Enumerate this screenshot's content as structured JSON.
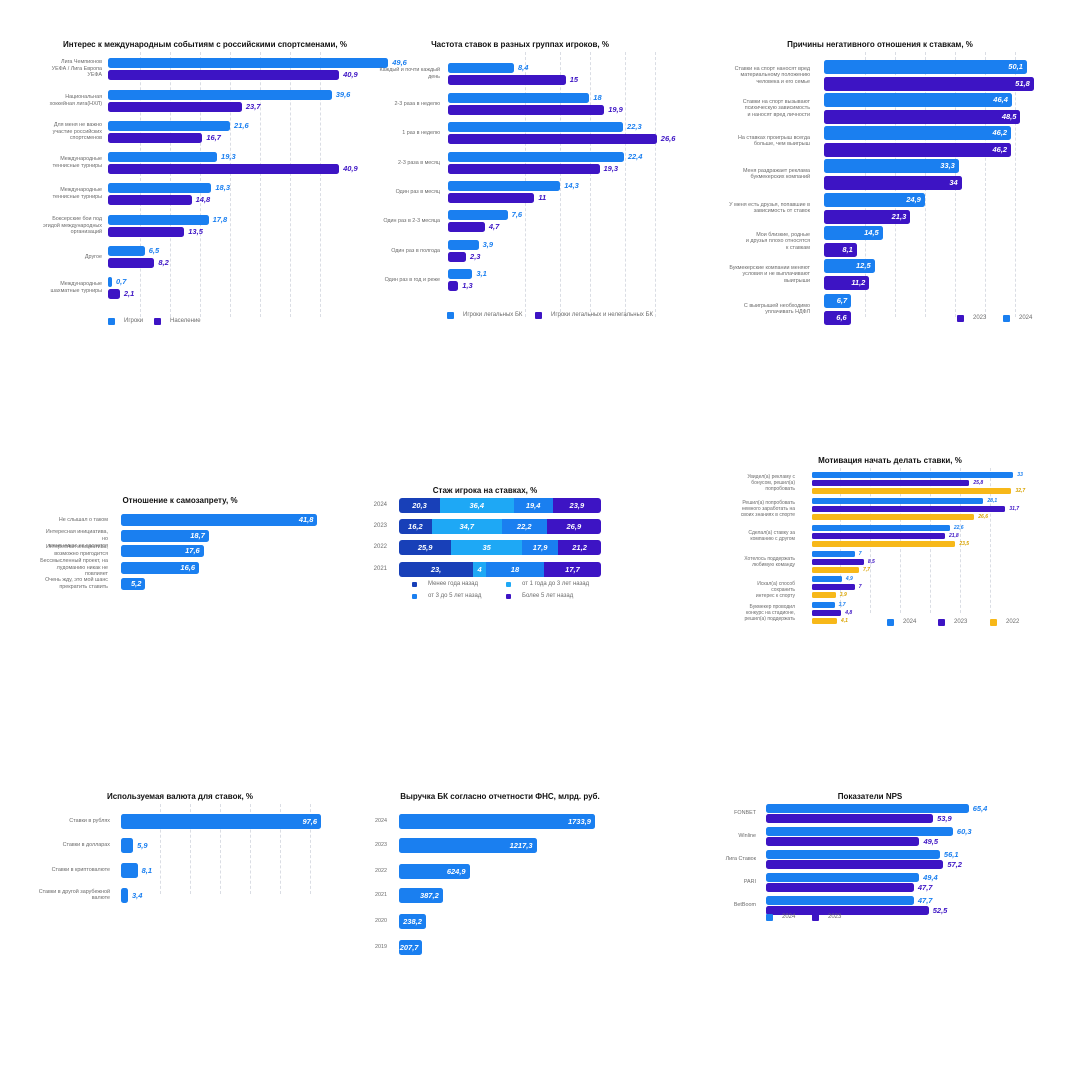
{
  "colors": {
    "blue": "#1a7ff0",
    "purple": "#3d14c4",
    "navy": "#1840b8",
    "lightblue": "#1ea8f5",
    "yellow": "#f7b819"
  },
  "chart_data": [
    {
      "id": "interest",
      "type": "bar",
      "orientation": "horizontal",
      "title": "Интерес к международным событиям с российскими спортсменами, %",
      "categories": [
        "Лига Чемпионов\nУЕФА / Лига Европа\nУЕФА",
        "Национальная\nхоккейная лига(НХЛ)",
        "Для меня не важно\nучастие российских\nспортсменов",
        "Международные\nтеннисные турниры",
        "Международные\nтеннисные турниры",
        "Боксерские бои под\nэгидой международных\nорганизаций",
        "Другое",
        "Международные\nшахматные турниры"
      ],
      "series": [
        {
          "name": "Игроки",
          "values": [
            "49,6",
            "39,6",
            "21,6",
            "19,3",
            "18,3",
            "17,8",
            "6,5",
            "0,7"
          ]
        },
        {
          "name": "Население",
          "values": [
            "40,9",
            "23,7",
            "16,7",
            "40,9",
            "14,8",
            "13,5",
            "8,2",
            "2,1"
          ]
        }
      ]
    },
    {
      "id": "frequency",
      "type": "bar",
      "orientation": "horizontal",
      "title": "Частота ставок в разных группах игроков, %",
      "categories": [
        "Каждый и почти каждый\nдень",
        "2-3 раза в неделю",
        "1 раз в неделю",
        "2-3 раза в месяц",
        "Один раз в месяц",
        "Один раз в 2-3 месяца",
        "Один раз в полгода",
        "Один раз в год и реже"
      ],
      "series": [
        {
          "name": "Игроки легальных БК",
          "values": [
            "8,4",
            "18",
            "22,3",
            "22,4",
            "14,3",
            "7,6",
            "3,9",
            "3,1"
          ]
        },
        {
          "name": "Игроки легальных и нелегальных БК",
          "values": [
            "15",
            "19,9",
            "26,6",
            "19,3",
            "11",
            "4,7",
            "2,3",
            "1,3"
          ]
        }
      ]
    },
    {
      "id": "negative",
      "type": "bar",
      "orientation": "horizontal",
      "title": "Причины негативного отношения к ставкам, %",
      "categories": [
        "Ставки на спорт наносят вред\nматериальному положению\nчеловека и его семье",
        "Ставки на спорт вызывают\nпсихическую зависимость\nи наносят вред личности",
        "На ставках проигрыш всегда\nбольше, чем выигрыш",
        "Меня раздражает реклама\nбукмекерских компаний",
        "У меня есть друзья, попавшие в\nзависимость от ставок",
        "Мои близкие, родные\nи друзья плохо относятся\nк ставкам",
        "Букмекерские компании меняют\nусловия и не выплачивают\nвыигрыши",
        "С выигрышей необходимо\nуплачивать НДФЛ"
      ],
      "legend_order": [
        "2023",
        "2024"
      ],
      "series": [
        {
          "name": "2024",
          "values": [
            "50,1",
            "46,4",
            "46,2",
            "33,3",
            "24,9",
            "14,5",
            "12,5",
            "6,7"
          ]
        },
        {
          "name": "2023",
          "values": [
            "51,8",
            "48,5",
            "46,2",
            "34",
            "21,3",
            "8,1",
            "11,2",
            "6,6"
          ]
        }
      ]
    },
    {
      "id": "selfban",
      "type": "bar",
      "orientation": "horizontal",
      "title": "Отношение к самозапрету, %",
      "categories": [
        "Не слышал о таком",
        "Интересная инициатива, но\nменя никак не касается",
        "Интересная инициатива,\nвозможно пригодится",
        "Бессмысленный проект, на\nлудоманию никак не\nповлияет",
        "Очень жду, это мой шанс\nпрекратить ставить"
      ],
      "series": [
        {
          "name": "",
          "values": [
            "41,8",
            "18,7",
            "17,6",
            "16,6",
            "5,2"
          ]
        }
      ]
    },
    {
      "id": "tenure",
      "type": "bar",
      "orientation": "horizontal-stacked",
      "title": "Стаж игрока на ставках, %",
      "categories": [
        "2024",
        "2023",
        "2022",
        "2021"
      ],
      "series": [
        {
          "name": "Менее года назад",
          "values": [
            "20,3",
            "16,2",
            "25,9",
            "23,"
          ]
        },
        {
          "name": "от 1 года до 3 лет назад",
          "values": [
            "36,4",
            "34,7",
            "35",
            "4"
          ]
        },
        {
          "name": "от 3 до 5 лет назад",
          "values": [
            "19,4",
            "22,2",
            "17,9",
            "18"
          ]
        },
        {
          "name": "Более 5 лет назад",
          "values": [
            "23,9",
            "26,9",
            "21,2",
            "17,7"
          ]
        }
      ]
    },
    {
      "id": "motivation",
      "type": "bar",
      "orientation": "horizontal",
      "title": "Мотивация начать делать ставки, %",
      "categories": [
        "Увидел(а) рекламу с\nбонусом, решил(а)\nпопробовать",
        "Решил(а) попробовать\nнемного заработать на\nсвоих знаниях в спорте",
        "Сделал(а) ставку за\nкомпанию с другом",
        "Хотелось поддержать\nлюбимую команду",
        "Искал(а) способ сохранить\nинтерес к спорту",
        "Букмекер проводил\nконкурс на стадионе,\nрешил(а) поддержать"
      ],
      "series": [
        {
          "name": "2024",
          "values": [
            "33",
            "28,1",
            "22,6",
            "7",
            "4,9",
            "3,7"
          ]
        },
        {
          "name": "2023",
          "values": [
            "25,8",
            "31,7",
            "21,8",
            "8,5",
            "7",
            "4,8"
          ]
        },
        {
          "name": "2022",
          "values": [
            "32,7",
            "26,6",
            "23,5",
            "7,7",
            "3,9",
            "4,1"
          ]
        }
      ]
    },
    {
      "id": "currency",
      "type": "bar",
      "orientation": "horizontal",
      "title": "Используемая валюта для ставок, %",
      "categories": [
        "Ставки в рублях",
        "Ставки в долларах",
        "Ставки в криптовалюте",
        "Ставки в другой зарубежной\nвалюте"
      ],
      "series": [
        {
          "name": "",
          "values": [
            "97,6",
            "5,9",
            "8,1",
            "3,4"
          ]
        }
      ]
    },
    {
      "id": "revenue",
      "type": "bar",
      "orientation": "horizontal",
      "title": "Выручка БК согласно отчетности ФНС, млрд. руб.",
      "categories": [
        "2024",
        "2023",
        "2022",
        "2021",
        "2020",
        "2019"
      ],
      "series": [
        {
          "name": "",
          "values": [
            "1733,9",
            "1217,3",
            "624,9",
            "387,2",
            "238,2",
            "207,7"
          ]
        }
      ]
    },
    {
      "id": "nps",
      "type": "bar",
      "orientation": "horizontal",
      "title": "Показатели NPS",
      "categories": [
        "FONBET",
        "Winline",
        "Лига Ставок",
        "PARI",
        "BetBoom"
      ],
      "series": [
        {
          "name": "2024",
          "values": [
            "65,4",
            "60,3",
            "56,1",
            "49,4",
            "47,7"
          ]
        },
        {
          "name": "2023",
          "values": [
            "53,9",
            "49,5",
            "57,2",
            "47,7",
            "52,5"
          ]
        }
      ]
    }
  ]
}
